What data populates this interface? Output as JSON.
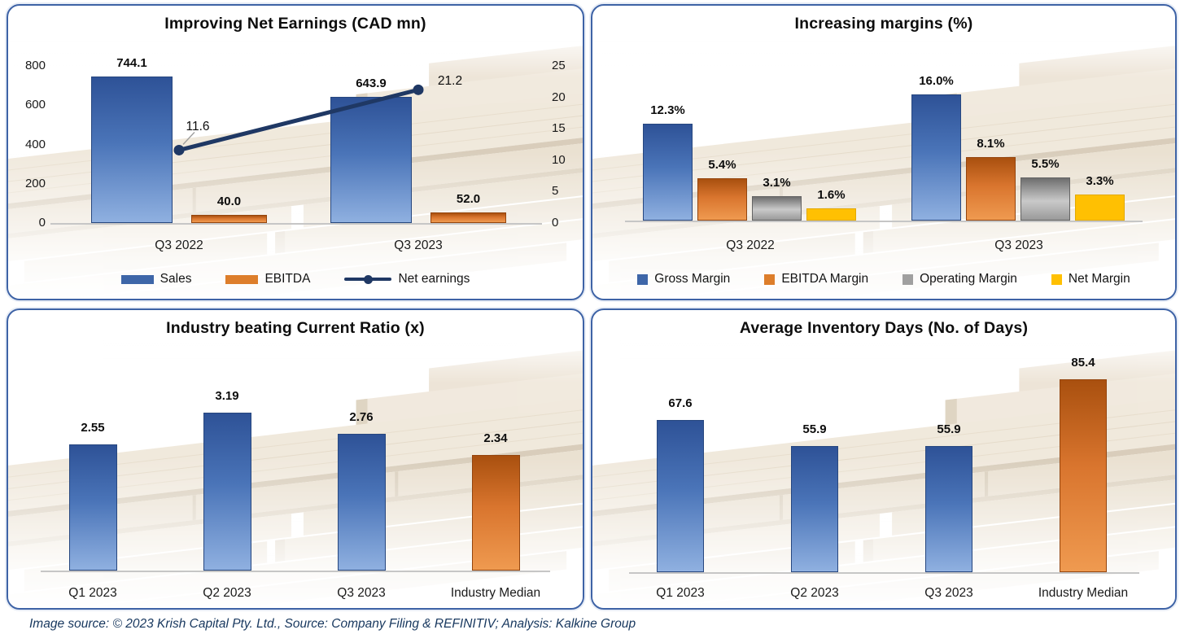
{
  "footer": {
    "text": "Image source: © 2023 Krish Capital Pty. Ltd., Source: Company Filing & REFINITIV; Analysis: Kalkine Group"
  },
  "colors": {
    "panel_border": "#3e63a6",
    "bar_blue": "#3f69ae",
    "bar_orange": "#d9752e",
    "bar_gray": "#a0a0a0",
    "bar_yellow": "#ffc002",
    "line_navy": "#1f3864",
    "wood_tan": "#e0d0b5",
    "title_text": "#0d0d0d",
    "footer_text": "#17375e"
  },
  "chart_data": [
    {
      "type": "combo-bar-line",
      "title": "Improving Net Earnings (CAD mn)",
      "categories": [
        "Q3 2022",
        "Q3 2023"
      ],
      "left_axis": {
        "ticks": [
          0,
          200,
          400,
          600,
          800
        ],
        "max": 800
      },
      "right_axis": {
        "ticks": [
          0,
          5,
          10,
          15,
          20,
          25
        ],
        "max": 25
      },
      "grid": false,
      "legend_position": "bottom",
      "series": [
        {
          "name": "Sales",
          "kind": "bar",
          "color": "blue",
          "values": [
            744.1,
            643.9
          ],
          "labels": [
            "744.1",
            "643.9"
          ]
        },
        {
          "name": "EBITDA",
          "kind": "bar",
          "color": "orange",
          "values": [
            40.0,
            52.0
          ],
          "labels": [
            "40.0",
            "52.0"
          ]
        },
        {
          "name": "Net earnings",
          "kind": "line",
          "color": "navy",
          "values": [
            11.6,
            21.2
          ],
          "labels": [
            "11.6",
            "21.2"
          ]
        }
      ]
    },
    {
      "type": "bar",
      "subtype": "grouped",
      "title": "Increasing margins (%)",
      "categories": [
        "Q3 2022",
        "Q3 2023"
      ],
      "ymax": 19,
      "grid": false,
      "legend_position": "bottom",
      "series": [
        {
          "name": "Gross Margin",
          "color": "blue",
          "values": [
            12.3,
            16.0
          ],
          "labels": [
            "12.3%",
            "16.0%"
          ]
        },
        {
          "name": "EBITDA Margin",
          "color": "orange",
          "values": [
            5.4,
            8.1
          ],
          "labels": [
            "5.4%",
            "8.1%"
          ]
        },
        {
          "name": "Operating Margin",
          "color": "gray",
          "values": [
            3.1,
            5.5
          ],
          "labels": [
            "3.1%",
            "5.5%"
          ]
        },
        {
          "name": "Net Margin",
          "color": "yellow",
          "values": [
            1.6,
            3.3
          ],
          "labels": [
            "1.6%",
            "3.3%"
          ]
        }
      ]
    },
    {
      "type": "bar",
      "title": "Industry beating Current Ratio (x)",
      "categories": [
        "Q1 2023",
        "Q2 2023",
        "Q3 2023",
        "Industry Median"
      ],
      "values": [
        2.55,
        3.19,
        2.76,
        2.34
      ],
      "labels": [
        "2.55",
        "3.19",
        "2.76",
        "2.34"
      ],
      "bar_colors": [
        "blue",
        "blue",
        "blue",
        "orange"
      ],
      "ymax": 3.6,
      "grid": false
    },
    {
      "type": "bar",
      "title": "Average Inventory Days (No. of Days)",
      "categories": [
        "Q1 2023",
        "Q2 2023",
        "Q3 2023",
        "Industry Median"
      ],
      "values": [
        67.6,
        55.9,
        55.9,
        85.4
      ],
      "labels": [
        "67.6",
        "55.9",
        "55.9",
        "85.4"
      ],
      "bar_colors": [
        "blue",
        "blue",
        "blue",
        "orange"
      ],
      "ymax": 96,
      "grid": false
    }
  ]
}
